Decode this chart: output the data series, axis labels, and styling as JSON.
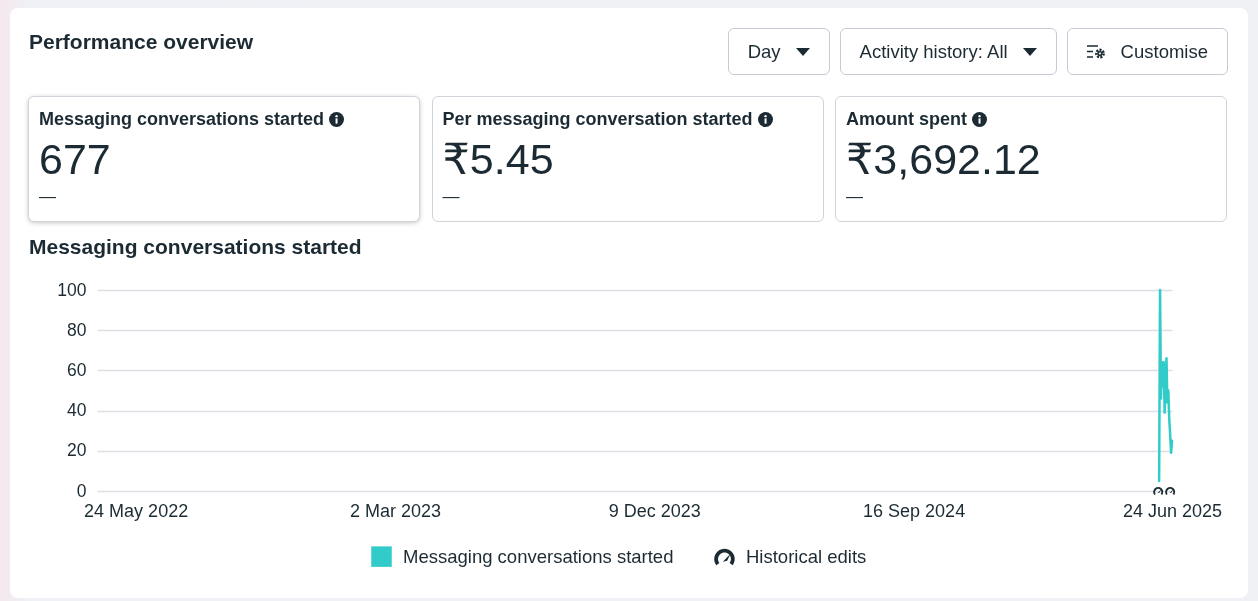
{
  "chart_data": [
    {
      "type": "other",
      "title": "Performance overview",
      "annotations": [
        "Day",
        "Activity history: All",
        "Customise"
      ]
    },
    {
      "type": "other",
      "title": "Messaging conversations started",
      "annotations": [
        "677",
        "—"
      ]
    },
    {
      "type": "other",
      "title": "Per messaging conversation started",
      "annotations": [
        "₹5.45",
        "—"
      ]
    },
    {
      "type": "other",
      "title": "Amount spent",
      "annotations": [
        "₹3,692.12",
        "—"
      ]
    },
    {
      "type": "line",
      "title": "Messaging conversations started",
      "x": [
        "2025-06-10",
        "2025-06-11",
        "2025-06-12",
        "2025-06-13",
        "2025-06-14",
        "2025-06-15",
        "2025-06-16",
        "2025-06-17",
        "2025-06-18",
        "2025-06-19",
        "2025-06-20",
        "2025-06-21",
        "2025-06-22",
        "2025-06-23",
        "2025-06-24"
      ],
      "series": [
        {
          "name": "Messaging conversations started",
          "color": "#31cbc9",
          "values": [
            5,
            100,
            46,
            64,
            52,
            64,
            39,
            56,
            66,
            44,
            50,
            36,
            28,
            19,
            25
          ]
        },
        {
          "name": "Historical edits",
          "type": "scatter",
          "color": "#1c2b33",
          "x": [
            "2025-06-09",
            "2025-06-22"
          ],
          "values": [
            0,
            0
          ]
        }
      ],
      "xlim": [
        "2022-04-12",
        "2025-06-24"
      ],
      "xticks": [
        {
          "value": "2022-05-24",
          "label": "24 May 2022"
        },
        {
          "value": "2023-03-02",
          "label": "2 Mar 2023"
        },
        {
          "value": "2023-12-09",
          "label": "9 Dec 2023"
        },
        {
          "value": "2024-09-16",
          "label": "16 Sep 2024"
        },
        {
          "value": "2025-06-24",
          "label": "24 Jun 2025"
        }
      ],
      "ylim": [
        0,
        100
      ],
      "yticks": [
        0,
        20,
        40,
        60,
        80,
        100
      ],
      "grid": "y",
      "legend": "bottom"
    }
  ]
}
